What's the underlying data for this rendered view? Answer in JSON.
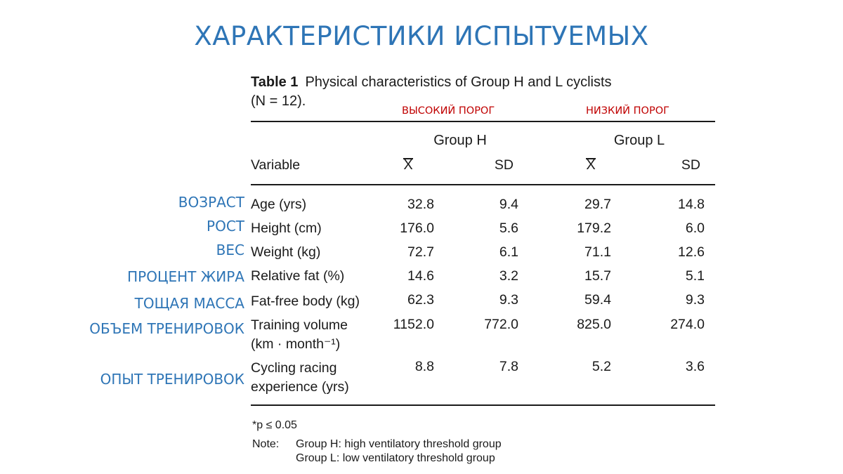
{
  "title": "ХАРАКТЕРИСТИКИ ИСПЫТУЕМЫХ",
  "colors": {
    "title": "#2E75B6",
    "annotation": "#C00000",
    "ru_label": "#2E75B6"
  },
  "caption": {
    "label": "Table 1",
    "text": "Physical characteristics of Group H and L cyclists",
    "n": "(N = 12)."
  },
  "annotations": {
    "group_h": "ВЫСОКИЙ ПОРОГ",
    "group_l": "НИЗКИЙ ПОРОГ"
  },
  "columns": {
    "variable": "Variable",
    "group_h": "Group H",
    "group_l": "Group L",
    "mean": "X",
    "sd": "SD"
  },
  "rows": [
    {
      "ru": "ВОЗРАСТ",
      "label": "Age (yrs)",
      "label2": "",
      "h_mean": "32.8",
      "h_sd": "9.4",
      "l_mean": "29.7",
      "l_sd": "14.8"
    },
    {
      "ru": "РОСТ",
      "label": "Height (cm)",
      "label2": "",
      "h_mean": "176.0",
      "h_sd": "5.6",
      "l_mean": "179.2",
      "l_sd": "6.0"
    },
    {
      "ru": "ВЕС",
      "label": "Weight (kg)",
      "label2": "",
      "h_mean": "72.7",
      "h_sd": "6.1",
      "l_mean": "71.1",
      "l_sd": "12.6"
    },
    {
      "ru": "ПРОЦЕНТ ЖИРА",
      "label": "Relative fat (%)",
      "label2": "",
      "h_mean": "14.6",
      "h_sd": "3.2",
      "l_mean": "15.7",
      "l_sd": "5.1"
    },
    {
      "ru": "ТОЩАЯ МАССА",
      "label": "Fat-free body (kg)",
      "label2": "",
      "h_mean": "62.3",
      "h_sd": "9.3",
      "l_mean": "59.4",
      "l_sd": "9.3"
    },
    {
      "ru": "ОБЪЕМ ТРЕНИРОВОК",
      "label": "Training volume",
      "label2": "(km · month⁻¹)",
      "h_mean": "1152.0",
      "h_sd": "772.0",
      "l_mean": "825.0",
      "l_sd": "274.0"
    },
    {
      "ru": "ОПЫТ ТРЕНИРОВОК",
      "label": "Cycling racing",
      "label2": "experience (yrs)",
      "h_mean": "8.8",
      "h_sd": "7.8",
      "l_mean": "5.2",
      "l_sd": "3.6"
    }
  ],
  "footnotes": {
    "p": "*p ≤ 0.05",
    "note_label": "Note:",
    "note_h": "Group H: high ventilatory threshold group",
    "note_l": "Group L: low ventilatory threshold group"
  }
}
